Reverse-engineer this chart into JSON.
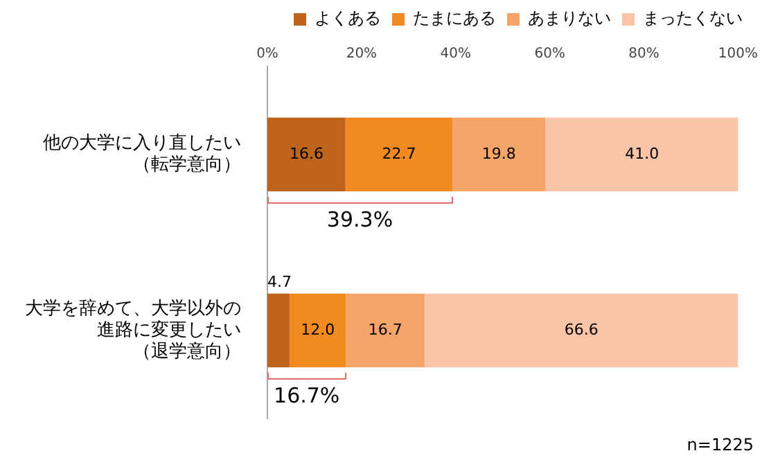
{
  "chart_data": {
    "type": "bar",
    "orientation": "horizontal",
    "stacked": true,
    "categories": [
      "他の大学に入り直したい（転学意向）",
      "大学を辞めて、大学以外の進路に変更したい（退学意向）"
    ],
    "series": [
      {
        "name": "よくある",
        "color": "#bf641c",
        "values": [
          16.6,
          4.7
        ],
        "value_labels": [
          "16.6",
          "4.7"
        ]
      },
      {
        "name": "たまにある",
        "color": "#f28a22",
        "values": [
          22.7,
          12.0
        ],
        "value_labels": [
          "22.7",
          "12.0"
        ]
      },
      {
        "name": "あまりない",
        "color": "#f5a46a",
        "values": [
          19.8,
          16.7
        ],
        "value_labels": [
          "19.8",
          "16.7"
        ]
      },
      {
        "name": "まったくない",
        "color": "#f8c5a8",
        "values": [
          41.0,
          66.6
        ],
        "value_labels": [
          "41.0",
          "66.6"
        ]
      }
    ],
    "xlim": [
      0,
      100
    ],
    "xticks": [
      {
        "value": 0,
        "label": "0%"
      },
      {
        "value": 20,
        "label": "20%"
      },
      {
        "value": 40,
        "label": "40%"
      },
      {
        "value": 60,
        "label": "60%"
      },
      {
        "value": 80,
        "label": "80%"
      },
      {
        "value": 100,
        "label": "100%"
      }
    ],
    "legend": "top",
    "annotations": [
      "39.3%",
      "16.7%",
      "n=1225"
    ]
  }
}
